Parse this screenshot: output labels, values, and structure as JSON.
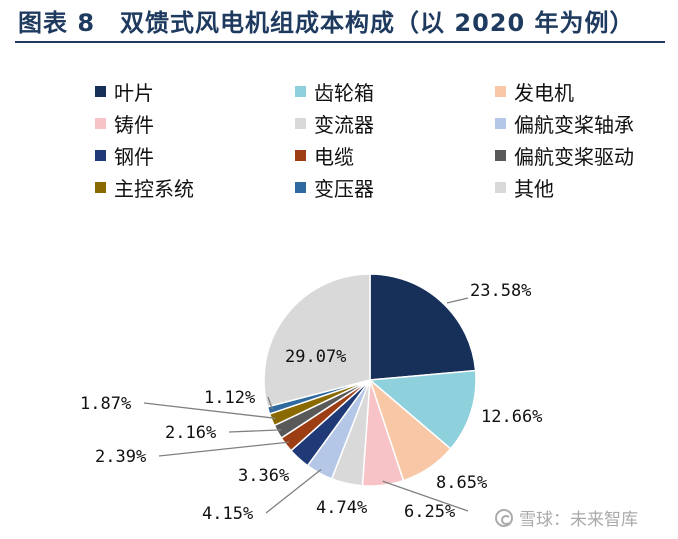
{
  "header": {
    "title": "图表 8　双馈式风电机组成本构成（以 2020 年为例）"
  },
  "watermark": {
    "text": "雪球：未来智库",
    "icon": "snowball-logo-icon"
  },
  "chart_data": {
    "type": "pie",
    "title": "",
    "legend_position": "top",
    "unit": "%",
    "series": [
      {
        "name": "叶片",
        "value": 23.58,
        "label": "23.58%",
        "color": "#17305a"
      },
      {
        "name": "齿轮箱",
        "value": 12.66,
        "label": "12.66%",
        "color": "#8fd0dd"
      },
      {
        "name": "发电机",
        "value": 8.65,
        "label": "8.65%",
        "color": "#f7c7a6"
      },
      {
        "name": "铸件",
        "value": 6.25,
        "label": "6.25%",
        "color": "#f8c3c6"
      },
      {
        "name": "变流器",
        "value": 4.74,
        "label": "4.74%",
        "color": "#d9d9d9"
      },
      {
        "name": "偏航变桨轴承",
        "value": 4.15,
        "label": "4.15%",
        "color": "#b4c7e7"
      },
      {
        "name": "钢件",
        "value": 3.36,
        "label": "3.36%",
        "color": "#203a78"
      },
      {
        "name": "电缆",
        "value": 2.39,
        "label": "2.39%",
        "color": "#9c3d14"
      },
      {
        "name": "偏航变桨驱动",
        "value": 2.16,
        "label": "2.16%",
        "color": "#595959"
      },
      {
        "name": "主控系统",
        "value": 1.87,
        "label": "1.87%",
        "color": "#8a6a00"
      },
      {
        "name": "变压器",
        "value": 1.12,
        "label": "1.12%",
        "color": "#2e6aa0"
      },
      {
        "name": "其他",
        "value": 29.07,
        "label": "29.07%",
        "color": "#d9d9d9"
      }
    ]
  }
}
